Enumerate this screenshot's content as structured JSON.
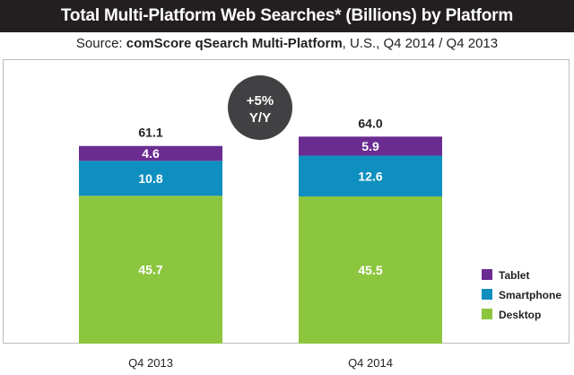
{
  "chart_data": {
    "type": "bar",
    "stacked": true,
    "title": "Total Multi-Platform Web Searches* (Billions) by Platform",
    "subtitle_prefix": "Source: ",
    "subtitle_source": "comScore qSearch Multi-Platform",
    "subtitle_suffix": ", U.S., Q4 2014 / Q4 2013",
    "categories": [
      "Q4 2013",
      "Q4 2014"
    ],
    "totals": [
      "61.1",
      "64.0"
    ],
    "ylim": [
      0,
      70
    ],
    "grid": false,
    "legend_position": "bottom-right",
    "series": [
      {
        "name": "Desktop",
        "values": [
          45.7,
          45.5
        ],
        "labels": [
          "45.7",
          "45.5"
        ],
        "color": "#8cc63f"
      },
      {
        "name": "Smartphone",
        "values": [
          10.8,
          12.6
        ],
        "labels": [
          "10.8",
          "12.6"
        ],
        "color": "#0f8fbf"
      },
      {
        "name": "Tablet",
        "values": [
          4.6,
          5.9
        ],
        "labels": [
          "4.6",
          "5.9"
        ],
        "color": "#6a2c91"
      }
    ],
    "legend_order": [
      "Tablet",
      "Smartphone",
      "Desktop"
    ],
    "annotation": {
      "line1": "+5%",
      "line2": "Y/Y",
      "color": "#414042"
    }
  }
}
